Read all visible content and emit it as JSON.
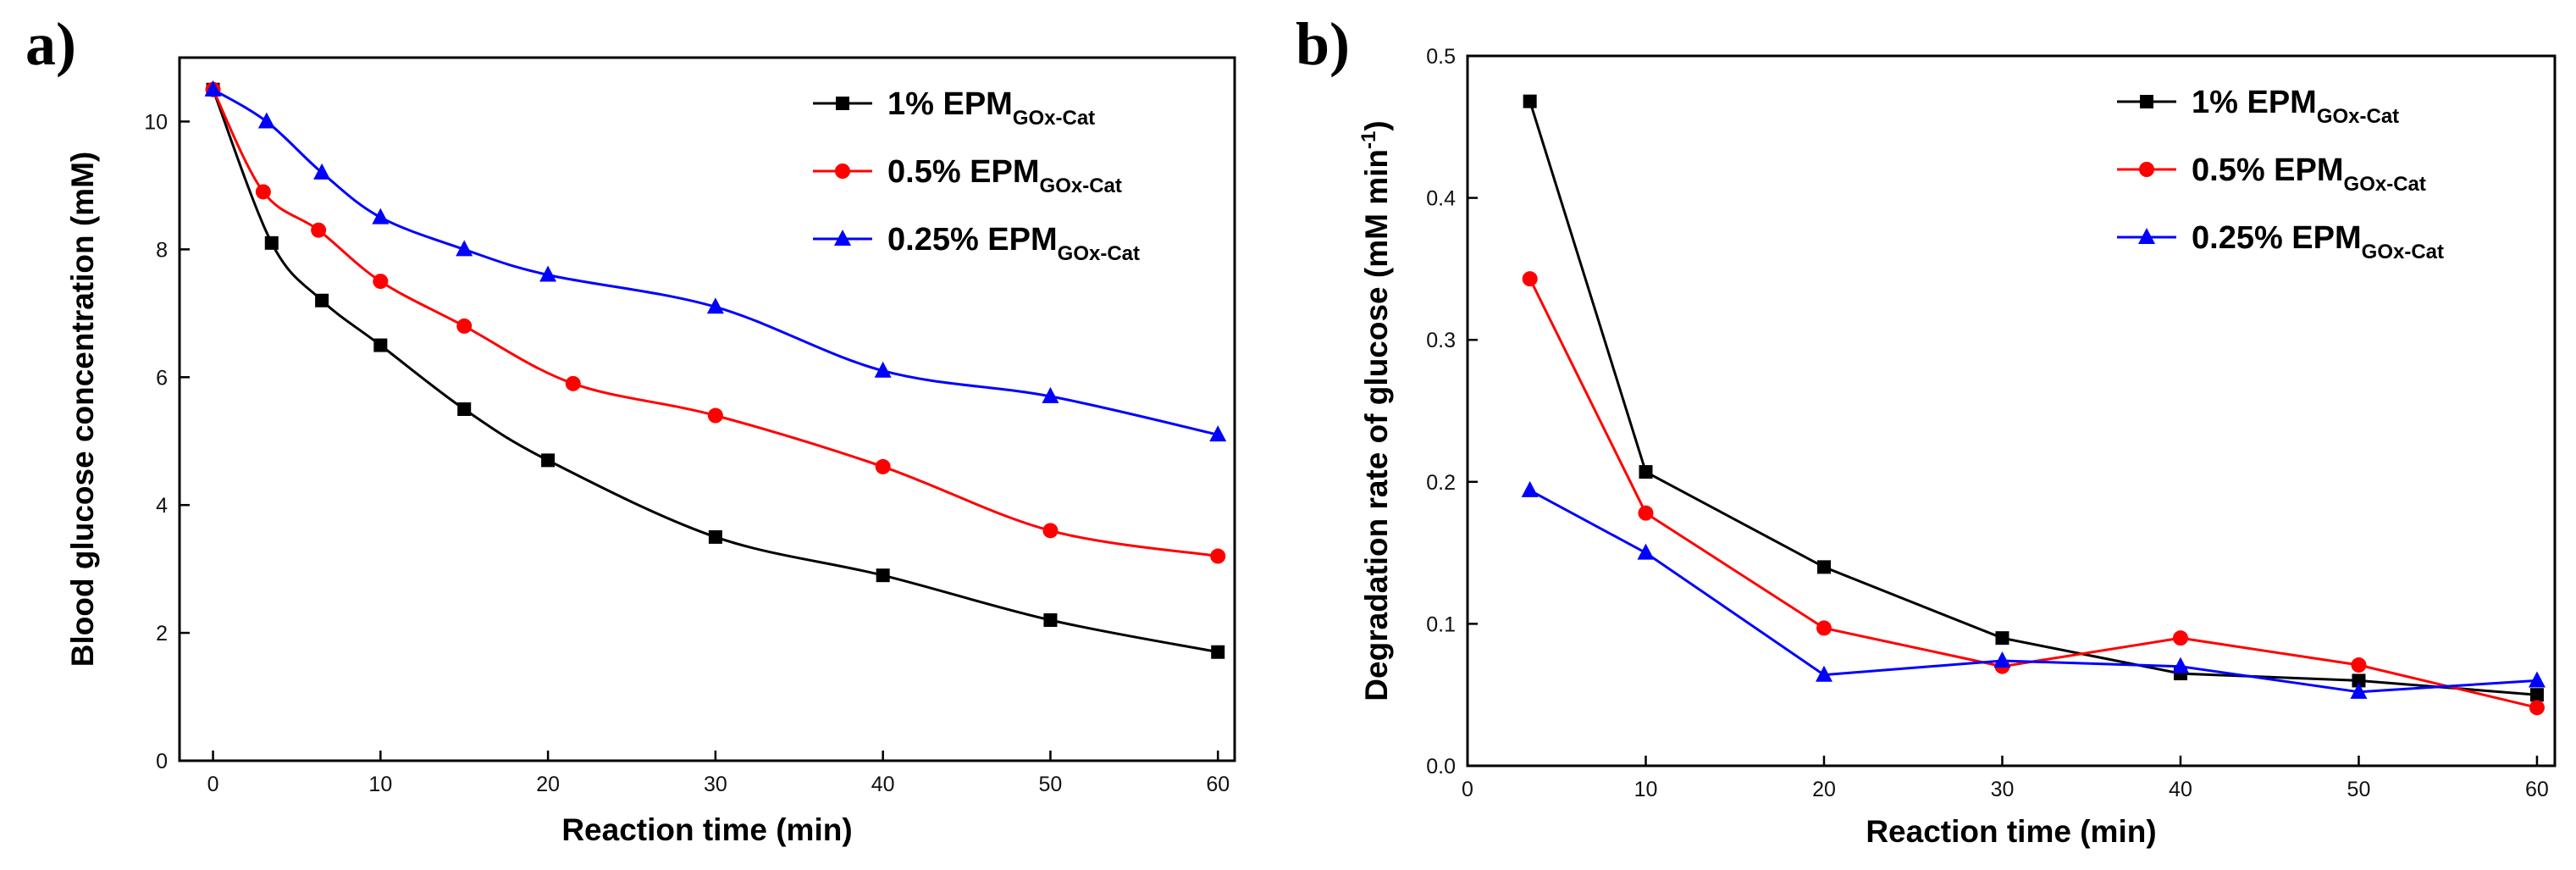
{
  "chart_data": [
    {
      "panel": "a)",
      "type": "line",
      "xlabel": "Reaction time (min)",
      "ylabel": "Blood glucose concentration (mM)",
      "xlim": [
        -2,
        61
      ],
      "ylim": [
        0,
        11
      ],
      "xticks": [
        0,
        10,
        20,
        30,
        40,
        50,
        60
      ],
      "yticks": [
        0,
        2,
        4,
        6,
        8,
        10
      ],
      "legend_position": "top-right",
      "series": [
        {
          "name": "1% EPM",
          "sub": "GOx-Cat",
          "color": "#000000",
          "marker": "square",
          "x": [
            0,
            3.5,
            6.5,
            10,
            15,
            20,
            30,
            40,
            50,
            60
          ],
          "y": [
            10.5,
            8.1,
            7.2,
            6.5,
            5.5,
            4.7,
            3.5,
            2.9,
            2.2,
            1.7
          ]
        },
        {
          "name": "0.5% EPM",
          "sub": "GOx-Cat",
          "color": "#ff0000",
          "marker": "circle",
          "x": [
            0,
            3,
            6.3,
            10,
            15,
            21.5,
            30,
            40,
            50,
            60
          ],
          "y": [
            10.5,
            8.9,
            8.3,
            7.5,
            6.8,
            5.9,
            5.4,
            4.6,
            3.6,
            3.2
          ]
        },
        {
          "name": "0.25% EPM",
          "sub": "GOx-Cat",
          "color": "#0000ff",
          "marker": "triangle",
          "x": [
            0,
            3.2,
            6.5,
            10,
            15,
            20,
            30,
            40,
            50,
            60
          ],
          "y": [
            10.5,
            10.0,
            9.2,
            8.5,
            8.0,
            7.6,
            7.1,
            6.1,
            5.7,
            5.1
          ]
        }
      ]
    },
    {
      "panel": "b)",
      "type": "line",
      "xlabel": "Reaction time (min)",
      "ylabel": "Degradation rate of glucose (mM min",
      "ylabel_sup": "-1",
      "ylabel_end": ")",
      "xlim": [
        0,
        61
      ],
      "ylim": [
        0,
        0.5
      ],
      "xticks": [
        0,
        10,
        20,
        30,
        40,
        50,
        60
      ],
      "yticks": [
        0.0,
        0.1,
        0.2,
        0.3,
        0.4,
        0.5
      ],
      "legend_position": "top-right",
      "series": [
        {
          "name": "1% EPM",
          "sub": "GOx-Cat",
          "color": "#000000",
          "marker": "square",
          "x": [
            3.5,
            10,
            20,
            30,
            40,
            50,
            60
          ],
          "y": [
            0.468,
            0.207,
            0.14,
            0.09,
            0.065,
            0.06,
            0.05
          ]
        },
        {
          "name": "0.5% EPM",
          "sub": "GOx-Cat",
          "color": "#ff0000",
          "marker": "circle",
          "x": [
            3.5,
            10,
            20,
            30,
            40,
            50,
            60
          ],
          "y": [
            0.343,
            0.178,
            0.097,
            0.07,
            0.09,
            0.071,
            0.041
          ]
        },
        {
          "name": "0.25% EPM",
          "sub": "GOx-Cat",
          "color": "#0000ff",
          "marker": "triangle",
          "x": [
            3.5,
            10,
            20,
            30,
            40,
            50,
            60
          ],
          "y": [
            0.194,
            0.15,
            0.064,
            0.074,
            0.07,
            0.052,
            0.06
          ]
        }
      ]
    }
  ]
}
